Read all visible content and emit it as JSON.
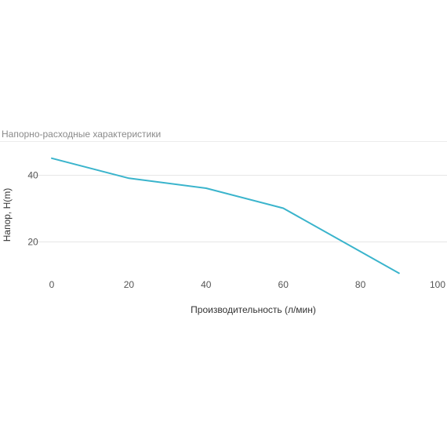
{
  "chart_data": {
    "type": "line",
    "title": "Напорно-расходные характеристики",
    "xlabel": "Производительность (л/мин)",
    "ylabel": "Напор, H(m)",
    "xlim": [
      0,
      100
    ],
    "ylim": [
      10,
      50
    ],
    "xticks": [
      "0",
      "20",
      "40",
      "60",
      "80",
      "100"
    ],
    "yticks": [
      "20",
      "40"
    ],
    "grid": true,
    "series": [
      {
        "x": [
          0,
          20,
          40,
          60,
          80,
          90
        ],
        "y": [
          45,
          39,
          36,
          30,
          17,
          10.5
        ],
        "color": "#3ab4cc"
      }
    ]
  }
}
